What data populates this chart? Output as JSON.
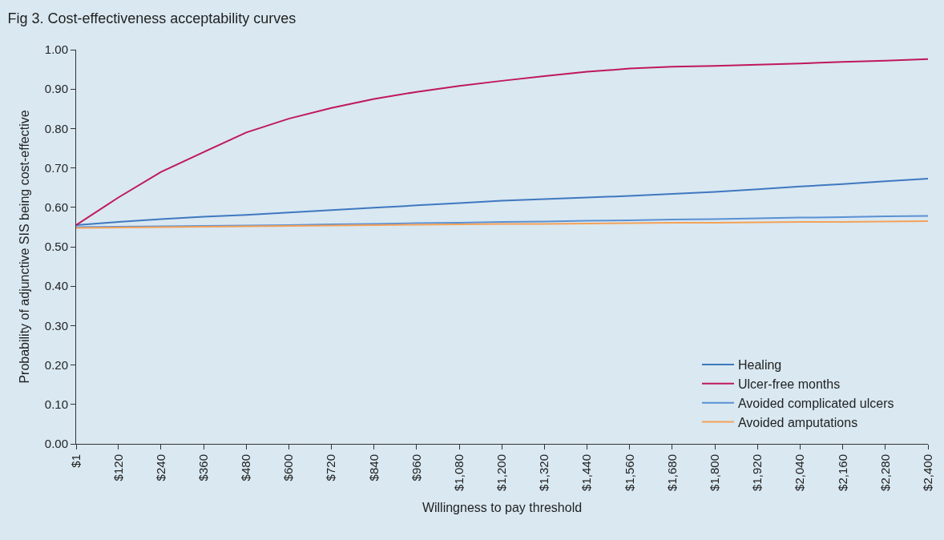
{
  "chart_data": {
    "type": "line",
    "title": "Fig 3. Cost-effectiveness acceptability curves",
    "xlabel": "Willingness to pay threshold",
    "ylabel": "Probability of adjunctive SIS being cost-effective",
    "x": [
      1,
      120,
      240,
      360,
      480,
      600,
      720,
      840,
      960,
      1080,
      1200,
      1320,
      1440,
      1560,
      1680,
      1800,
      1920,
      2040,
      2160,
      2280,
      2400
    ],
    "series": [
      {
        "name": "Healing",
        "color": "#3f78c0",
        "values": [
          0.555,
          0.563,
          0.57,
          0.576,
          0.581,
          0.587,
          0.593,
          0.599,
          0.605,
          0.611,
          0.617,
          0.621,
          0.625,
          0.629,
          0.634,
          0.639,
          0.646,
          0.653,
          0.659,
          0.666,
          0.673
        ]
      },
      {
        "name": "Ulcer-free months",
        "color": "#c0185a",
        "values": [
          0.555,
          0.625,
          0.69,
          0.74,
          0.79,
          0.825,
          0.852,
          0.875,
          0.893,
          0.908,
          0.921,
          0.933,
          0.944,
          0.952,
          0.957,
          0.959,
          0.962,
          0.965,
          0.969,
          0.972,
          0.976
        ]
      },
      {
        "name": "Avoided complicated ulcers",
        "color": "#5a90d4",
        "values": [
          0.55,
          0.551,
          0.552,
          0.553,
          0.554,
          0.555,
          0.557,
          0.558,
          0.56,
          0.561,
          0.563,
          0.564,
          0.566,
          0.567,
          0.569,
          0.57,
          0.572,
          0.574,
          0.575,
          0.577,
          0.578
        ]
      },
      {
        "name": "Avoided amputations",
        "color": "#f4a259",
        "values": [
          0.548,
          0.549,
          0.55,
          0.551,
          0.552,
          0.553,
          0.554,
          0.555,
          0.556,
          0.557,
          0.558,
          0.558,
          0.559,
          0.56,
          0.561,
          0.561,
          0.562,
          0.563,
          0.563,
          0.564,
          0.565
        ]
      }
    ],
    "xlim": [
      1,
      2400
    ],
    "xticks": [
      {
        "value": 1,
        "label": "$1"
      },
      {
        "value": 120,
        "label": "$120"
      },
      {
        "value": 240,
        "label": "$240"
      },
      {
        "value": 360,
        "label": "$360"
      },
      {
        "value": 480,
        "label": "$480"
      },
      {
        "value": 600,
        "label": "$600"
      },
      {
        "value": 720,
        "label": "$720"
      },
      {
        "value": 840,
        "label": "$840"
      },
      {
        "value": 960,
        "label": "$960"
      },
      {
        "value": 1080,
        "label": "$1,080"
      },
      {
        "value": 1200,
        "label": "$1,200"
      },
      {
        "value": 1320,
        "label": "$1,320"
      },
      {
        "value": 1440,
        "label": "$1,440"
      },
      {
        "value": 1560,
        "label": "$1,560"
      },
      {
        "value": 1680,
        "label": "$1,680"
      },
      {
        "value": 1800,
        "label": "$1,800"
      },
      {
        "value": 1920,
        "label": "$1,920"
      },
      {
        "value": 2040,
        "label": "$2,040"
      },
      {
        "value": 2160,
        "label": "$2,160"
      },
      {
        "value": 2280,
        "label": "$2,280"
      },
      {
        "value": 2400,
        "label": "$2,400"
      }
    ],
    "ylim": [
      0,
      1
    ],
    "yticks": [
      {
        "value": 0,
        "label": "0.00"
      },
      {
        "value": 0.1,
        "label": "0.10"
      },
      {
        "value": 0.2,
        "label": "0.20"
      },
      {
        "value": 0.3,
        "label": "0.30"
      },
      {
        "value": 0.4,
        "label": "0.40"
      },
      {
        "value": 0.5,
        "label": "0.50"
      },
      {
        "value": 0.6,
        "label": "0.60"
      },
      {
        "value": 0.7,
        "label": "0.70"
      },
      {
        "value": 0.8,
        "label": "0.80"
      },
      {
        "value": 0.9,
        "label": "0.90"
      },
      {
        "value": 1,
        "label": "1.00"
      }
    ],
    "legend": "bottom right",
    "marker": "none",
    "line_style": "solid"
  }
}
